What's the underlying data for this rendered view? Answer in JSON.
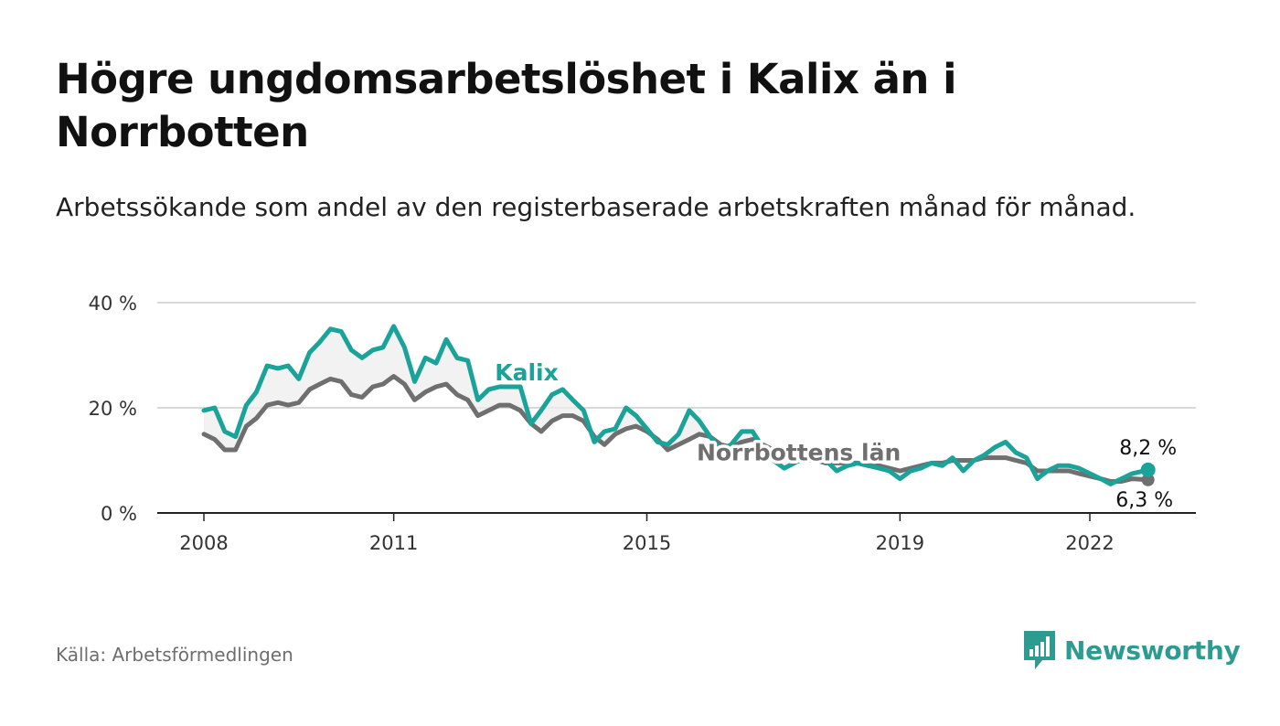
{
  "header": {
    "title": "Högre ungdomsarbetslöshet i Kalix än i Norrbotten",
    "subtitle": "Arbetssökande som andel av den registerbaserade arbetskraften månad för månad."
  },
  "footer": {
    "source": "Källa: Arbetsförmedlingen",
    "brand": "Newsworthy"
  },
  "colors": {
    "kalix": "#1aa398",
    "norrbotten": "#6f6f6f",
    "grid": "#d9d9d9",
    "axis": "#222222",
    "brand": "#2e9b90"
  },
  "chart_data": {
    "type": "line",
    "title": "Högre ungdomsarbetslöshet i Kalix än i Norrbotten",
    "xlabel": "",
    "ylabel": "",
    "xlim": [
      2007.9,
      2023.2
    ],
    "ylim": [
      0,
      40
    ],
    "y_ticks": [
      0,
      20,
      40
    ],
    "y_tick_labels": [
      "0 %",
      "20 %",
      "40 %"
    ],
    "x_ticks": [
      2008,
      2011,
      2015,
      2019,
      2022
    ],
    "x_tick_labels": [
      "2008",
      "2011",
      "2015",
      "2019",
      "2022"
    ],
    "grid": true,
    "series": [
      {
        "name": "Kalix",
        "label": "Kalix",
        "end_label": "8,2 %",
        "x": [
          2008.0,
          2008.17,
          2008.33,
          2008.5,
          2008.67,
          2008.83,
          2009.0,
          2009.17,
          2009.33,
          2009.5,
          2009.67,
          2009.83,
          2010.0,
          2010.17,
          2010.33,
          2010.5,
          2010.67,
          2010.83,
          2011.0,
          2011.17,
          2011.33,
          2011.5,
          2011.67,
          2011.83,
          2012.0,
          2012.17,
          2012.33,
          2012.5,
          2012.67,
          2012.83,
          2013.0,
          2013.17,
          2013.33,
          2013.5,
          2013.67,
          2013.83,
          2014.0,
          2014.17,
          2014.33,
          2014.5,
          2014.67,
          2014.83,
          2015.0,
          2015.17,
          2015.33,
          2015.5,
          2015.67,
          2015.83,
          2016.0,
          2016.17,
          2016.33,
          2016.5,
          2016.67,
          2016.83,
          2017.0,
          2017.17,
          2017.33,
          2017.5,
          2017.67,
          2017.83,
          2018.0,
          2018.17,
          2018.33,
          2018.5,
          2018.67,
          2018.83,
          2019.0,
          2019.17,
          2019.33,
          2019.5,
          2019.67,
          2019.83,
          2020.0,
          2020.17,
          2020.33,
          2020.5,
          2020.67,
          2020.83,
          2021.0,
          2021.17,
          2021.33,
          2021.5,
          2021.67,
          2021.83,
          2022.0,
          2022.17,
          2022.33,
          2022.5,
          2022.67,
          2022.92
        ],
        "values": [
          19.5,
          20.0,
          15.5,
          14.5,
          20.5,
          23.0,
          28.0,
          27.5,
          28.0,
          25.5,
          30.5,
          32.5,
          35.0,
          34.5,
          31.0,
          29.5,
          31.0,
          31.5,
          35.5,
          31.5,
          25.0,
          29.5,
          28.5,
          33.0,
          29.5,
          29.0,
          21.5,
          23.5,
          24.0,
          24.0,
          24.0,
          17.0,
          19.5,
          22.5,
          23.5,
          21.5,
          19.5,
          13.5,
          15.5,
          16.0,
          20.0,
          18.5,
          16.0,
          13.5,
          13.0,
          15.0,
          19.5,
          17.5,
          14.5,
          12.0,
          13.0,
          15.5,
          15.5,
          12.5,
          10.0,
          8.5,
          9.5,
          10.5,
          11.0,
          10.0,
          8.0,
          9.0,
          9.5,
          9.0,
          8.5,
          8.0,
          6.5,
          8.0,
          8.5,
          9.5,
          9.0,
          10.5,
          8.0,
          10.0,
          11.0,
          12.5,
          13.5,
          11.5,
          10.5,
          6.5,
          8.0,
          9.0,
          9.0,
          8.5,
          7.5,
          6.5,
          5.5,
          6.5,
          7.5,
          8.2
        ]
      },
      {
        "name": "Norrbottens län",
        "label": "Norrbottens län",
        "end_label": "6,3 %",
        "x": [
          2008.0,
          2008.17,
          2008.33,
          2008.5,
          2008.67,
          2008.83,
          2009.0,
          2009.17,
          2009.33,
          2009.5,
          2009.67,
          2009.83,
          2010.0,
          2010.17,
          2010.33,
          2010.5,
          2010.67,
          2010.83,
          2011.0,
          2011.17,
          2011.33,
          2011.5,
          2011.67,
          2011.83,
          2012.0,
          2012.17,
          2012.33,
          2012.5,
          2012.67,
          2012.83,
          2013.0,
          2013.17,
          2013.33,
          2013.5,
          2013.67,
          2013.83,
          2014.0,
          2014.17,
          2014.33,
          2014.5,
          2014.67,
          2014.83,
          2015.0,
          2015.17,
          2015.33,
          2015.5,
          2015.67,
          2015.83,
          2016.0,
          2016.17,
          2016.33,
          2016.5,
          2016.67,
          2016.83,
          2017.0,
          2017.17,
          2017.33,
          2017.5,
          2017.67,
          2017.83,
          2018.0,
          2018.17,
          2018.33,
          2018.5,
          2018.67,
          2018.83,
          2019.0,
          2019.17,
          2019.33,
          2019.5,
          2019.67,
          2019.83,
          2020.0,
          2020.17,
          2020.33,
          2020.5,
          2020.67,
          2020.83,
          2021.0,
          2021.17,
          2021.33,
          2021.5,
          2021.67,
          2021.83,
          2022.0,
          2022.17,
          2022.33,
          2022.5,
          2022.67,
          2022.92
        ],
        "values": [
          15.0,
          14.0,
          12.0,
          12.0,
          16.5,
          18.0,
          20.5,
          21.0,
          20.5,
          21.0,
          23.5,
          24.5,
          25.5,
          25.0,
          22.5,
          22.0,
          24.0,
          24.5,
          26.0,
          24.5,
          21.5,
          23.0,
          24.0,
          24.5,
          22.5,
          21.5,
          18.5,
          19.5,
          20.5,
          20.5,
          19.5,
          17.0,
          15.5,
          17.5,
          18.5,
          18.5,
          17.5,
          14.5,
          13.0,
          15.0,
          16.0,
          16.5,
          15.5,
          14.0,
          12.0,
          13.0,
          14.0,
          15.0,
          14.5,
          13.0,
          12.5,
          13.5,
          14.0,
          13.0,
          12.0,
          10.5,
          10.0,
          10.0,
          10.0,
          9.5,
          9.5,
          9.5,
          9.5,
          9.0,
          9.0,
          8.5,
          8.0,
          8.5,
          9.0,
          9.5,
          9.5,
          10.0,
          10.0,
          10.0,
          10.5,
          10.5,
          10.5,
          10.0,
          9.5,
          8.0,
          8.0,
          8.0,
          8.0,
          7.5,
          7.0,
          6.5,
          6.0,
          6.0,
          6.5,
          6.3
        ]
      }
    ]
  }
}
